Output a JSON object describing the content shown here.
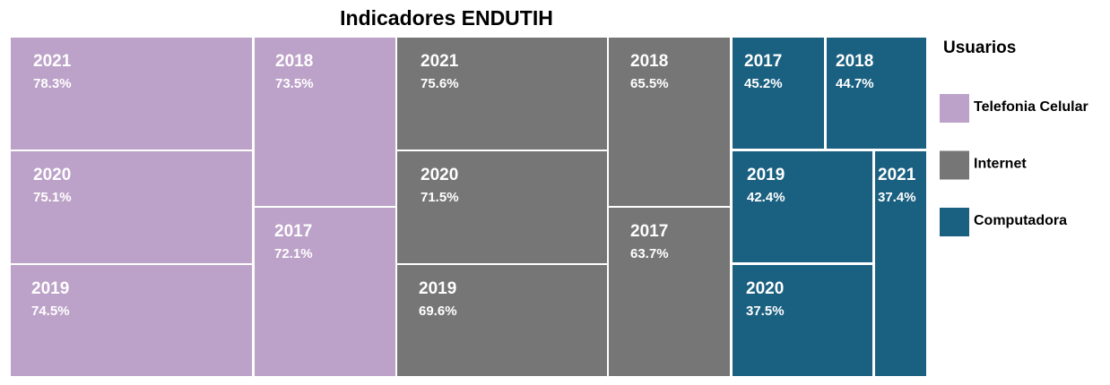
{
  "chart_data": {
    "type": "treemap",
    "title": "Indicadores ENDUTIH",
    "legend_title": "Usuarios",
    "legend": "right",
    "series": [
      {
        "name": "Telefonia Celular",
        "color": "#bca1c8",
        "categories": [
          "2021",
          "2020",
          "2019",
          "2018",
          "2017"
        ],
        "values": [
          78.3,
          75.1,
          74.5,
          73.5,
          72.1
        ],
        "value_labels": [
          "78.3%",
          "75.1%",
          "74.5%",
          "73.5%",
          "72.1%"
        ]
      },
      {
        "name": "Internet",
        "color": "#767676",
        "categories": [
          "2021",
          "2020",
          "2019",
          "2018",
          "2017"
        ],
        "values": [
          75.6,
          71.5,
          69.6,
          65.5,
          63.7
        ],
        "value_labels": [
          "75.6%",
          "71.5%",
          "69.6%",
          "65.5%",
          "63.7%"
        ]
      },
      {
        "name": "Computadora",
        "color": "#1a6080",
        "categories": [
          "2017",
          "2018",
          "2019",
          "2020",
          "2021"
        ],
        "values": [
          45.2,
          44.7,
          42.4,
          37.5,
          37.4
        ],
        "value_labels": [
          "45.2%",
          "44.7%",
          "42.4%",
          "37.5%",
          "37.4%"
        ]
      }
    ]
  }
}
